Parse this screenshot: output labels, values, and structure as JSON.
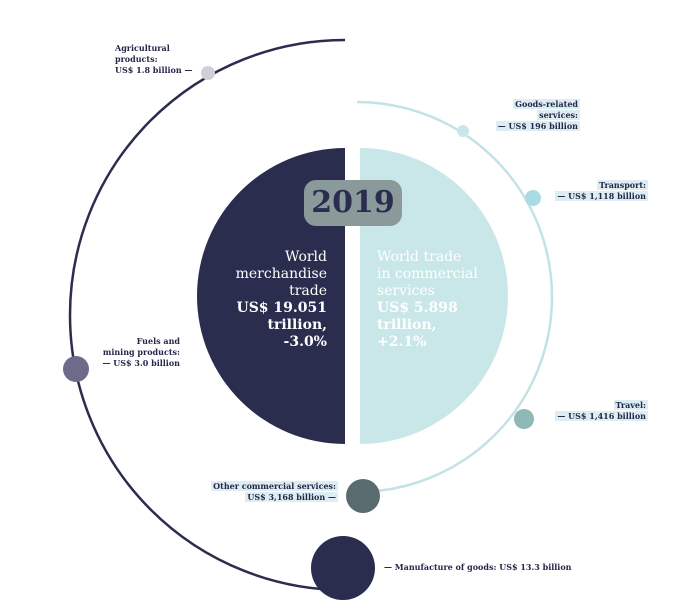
{
  "chart_data": {
    "type": "pie",
    "title": "2019",
    "merchandise": {
      "lines": [
        "World",
        "merchandise",
        "trade",
        "US$ 19.051",
        "trillion,",
        "-3.0%"
      ],
      "value_trillion": 19.051,
      "change_pct": -3.0,
      "color": "#2a2d4e",
      "components": [
        {
          "lines": [
            "Agricultural",
            "products:",
            "US$ 1.8 billion —"
          ],
          "name": "Agricultural products",
          "value_billion": 1.8
        },
        {
          "lines": [
            "Fuels and",
            "mining products:",
            "— US$ 3.0 billion"
          ],
          "name": "Fuels and mining products",
          "value_billion": 3.0
        },
        {
          "lines": [
            "— Manufacture of goods: US$ 13.3 billion"
          ],
          "name": "Manufacture of goods",
          "value_billion": 13.3
        }
      ]
    },
    "services": {
      "lines": [
        "World trade",
        "in commercial",
        "services",
        "US$ 5.898",
        "trillion,",
        "+2.1%"
      ],
      "value_trillion": 5.898,
      "change_pct": 2.1,
      "color": "#c9e6e8",
      "components": [
        {
          "lines": [
            "Goods-related",
            "services:",
            "— US$ 196 billion"
          ],
          "name": "Goods-related services",
          "value_billion": 196
        },
        {
          "lines": [
            "Transport:",
            "— US$ 1,118 billion"
          ],
          "name": "Transport",
          "value_billion": 1118
        },
        {
          "lines": [
            "Travel:",
            "— US$ 1,416 billion"
          ],
          "name": "Travel",
          "value_billion": 1416
        },
        {
          "lines": [
            "Other commercial services:",
            "US$ 3,168 billion —"
          ],
          "name": "Other commercial services",
          "value_billion": 3168
        }
      ]
    }
  }
}
